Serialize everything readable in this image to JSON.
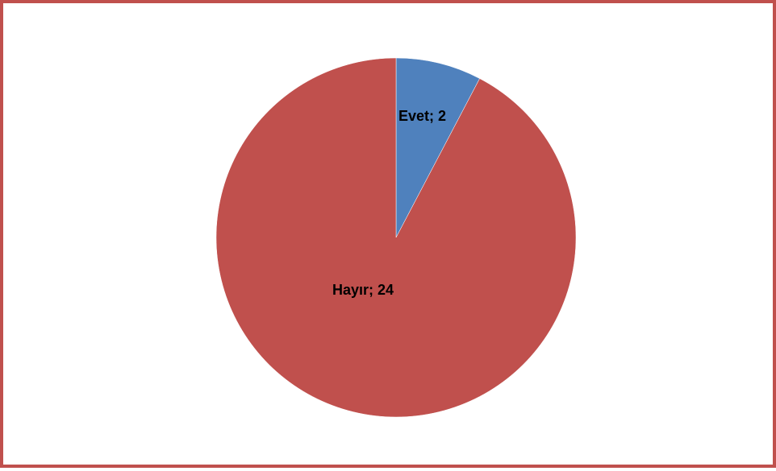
{
  "chart_data": {
    "type": "pie",
    "categories": [
      "Evet",
      "Hayır"
    ],
    "values": [
      2,
      24
    ],
    "data_labels": [
      "Evet; 2",
      "Hayır; 24"
    ],
    "colors": [
      "#4f81bd",
      "#c0504d"
    ],
    "start": "12 o'clock, clockwise",
    "title": "",
    "legend": "none"
  },
  "frame": {
    "border_color": "#c0504d"
  }
}
